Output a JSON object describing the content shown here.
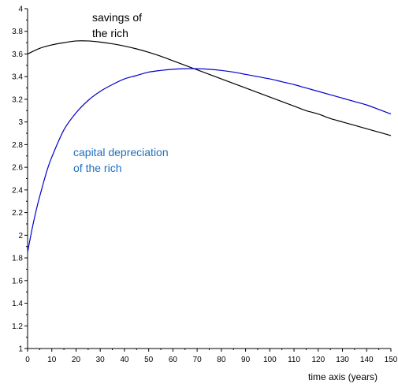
{
  "chart_data": {
    "type": "line",
    "title": "",
    "xlabel": "time axis (years)",
    "ylabel": "",
    "xlim": [
      0,
      150
    ],
    "ylim": [
      1,
      4
    ],
    "xticks": [
      "0",
      "10",
      "20",
      "30",
      "40",
      "50",
      "60",
      "70",
      "80",
      "90",
      "100",
      "110",
      "120",
      "130",
      "140",
      "150"
    ],
    "yticks": [
      "1",
      "1.2",
      "1.4",
      "1.6",
      "1.8",
      "2",
      "2.2",
      "2.4",
      "2.6",
      "2.8",
      "3",
      "3.2",
      "3.4",
      "3.6",
      "3.8",
      "4"
    ],
    "grid": false,
    "series": [
      {
        "name": "savings of the rich",
        "color": "#000000",
        "x": [
          0,
          5,
          10,
          15,
          20,
          25,
          30,
          35,
          40,
          45,
          50,
          55,
          60,
          65,
          70,
          75,
          80,
          85,
          90,
          95,
          100,
          105,
          110,
          115,
          120,
          125,
          130,
          135,
          140,
          145,
          150
        ],
        "y": [
          3.6,
          3.65,
          3.68,
          3.7,
          3.715,
          3.715,
          3.705,
          3.69,
          3.67,
          3.645,
          3.615,
          3.58,
          3.54,
          3.5,
          3.46,
          3.42,
          3.38,
          3.34,
          3.3,
          3.26,
          3.22,
          3.18,
          3.14,
          3.1,
          3.07,
          3.03,
          3.0,
          2.97,
          2.94,
          2.91,
          2.88
        ]
      },
      {
        "name": "capital depreciation of the rich",
        "color": "#0000cc",
        "x": [
          0,
          2,
          4,
          6,
          8,
          10,
          15,
          20,
          25,
          30,
          35,
          40,
          45,
          50,
          55,
          60,
          65,
          70,
          75,
          80,
          85,
          90,
          95,
          100,
          105,
          110,
          115,
          120,
          125,
          130,
          135,
          140,
          145,
          150
        ],
        "y": [
          1.85,
          2.07,
          2.26,
          2.42,
          2.57,
          2.69,
          2.93,
          3.08,
          3.19,
          3.27,
          3.33,
          3.38,
          3.41,
          3.44,
          3.455,
          3.465,
          3.47,
          3.47,
          3.465,
          3.455,
          3.44,
          3.42,
          3.4,
          3.38,
          3.355,
          3.33,
          3.3,
          3.27,
          3.24,
          3.21,
          3.18,
          3.15,
          3.11,
          3.07
        ]
      }
    ],
    "annotations": [
      {
        "lines": [
          "savings of",
          "the rich"
        ],
        "color": "#000000"
      },
      {
        "lines": [
          "capital depreciation",
          "of the rich"
        ],
        "color": "#1f6fbf"
      }
    ]
  }
}
